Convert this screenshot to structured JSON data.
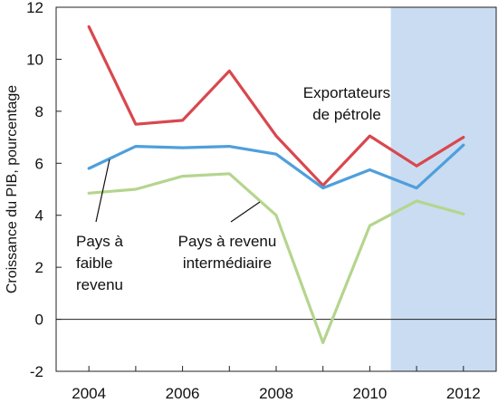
{
  "chart_data": {
    "type": "line",
    "ylabel": "Croissance du PIB, pourcentage",
    "ylim": [
      -2,
      12
    ],
    "yticks": [
      12,
      10,
      8,
      6,
      4,
      2,
      0,
      -2
    ],
    "xlim": [
      2003.3,
      2012.7
    ],
    "xticks": [
      2004,
      2006,
      2008,
      2010,
      2012
    ],
    "x": [
      2004,
      2005,
      2006,
      2007,
      2008,
      2009,
      2010,
      2011,
      2012
    ],
    "shaded_region": {
      "from": 2010.45,
      "to": 2012.7,
      "color": "#c9dcf2"
    },
    "series": [
      {
        "name": "Exportateurs de pétrole",
        "color": "#d9474e",
        "values": [
          11.25,
          7.5,
          7.65,
          9.55,
          7.05,
          5.15,
          7.05,
          5.9,
          7.0
        ]
      },
      {
        "name": "Pays à faible revenu",
        "color": "#4f9fdb",
        "values": [
          5.8,
          6.65,
          6.6,
          6.65,
          6.35,
          5.05,
          5.75,
          5.05,
          6.7
        ]
      },
      {
        "name": "Pays à revenu intermédiaire",
        "color": "#b5d58e",
        "values": [
          4.85,
          5.0,
          5.5,
          5.6,
          4.0,
          -0.9,
          3.6,
          4.55,
          4.05
        ]
      }
    ],
    "annotations": [
      {
        "lines": [
          "Exportateurs",
          "de pétrole"
        ],
        "series": 0
      },
      {
        "lines": [
          "Pays à",
          "faible",
          "revenu"
        ],
        "series": 1
      },
      {
        "lines": [
          "Pays à revenu",
          "intermédiaire"
        ],
        "series": 2
      }
    ],
    "grid": false,
    "legend": "none"
  }
}
